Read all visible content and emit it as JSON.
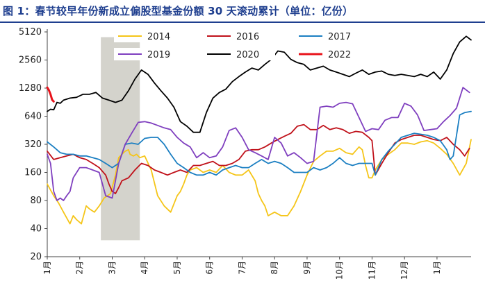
{
  "title": "图 1：春节较早年份新成立偏股型基金份额 30 天滚动累计（单位：亿份）",
  "chart_data": {
    "type": "line",
    "title": "图 1：春节较早年份新成立偏股型基金份额 30 天滚动累计（单位：亿份）",
    "y_scale": "log2",
    "ylim": [
      20,
      5120
    ],
    "yticks": [
      20,
      40,
      80,
      160,
      320,
      640,
      1280,
      2560,
      5120
    ],
    "x_months": [
      "1月",
      "2月",
      "3月",
      "4月",
      "5月",
      "6月",
      "7月",
      "8月",
      "9月",
      "10月",
      "11月",
      "12月",
      "1月"
    ],
    "x_month_pos": [
      0,
      1,
      2,
      3,
      4,
      5,
      6,
      7,
      8,
      9,
      10,
      11,
      12
    ],
    "x_end": 13.05,
    "shaded_region": [
      1.65,
      2.85
    ],
    "legend_placement": "top",
    "series": [
      {
        "name": "2014",
        "color": "#f5c518",
        "x": [
          0,
          0.2,
          0.35,
          0.5,
          0.7,
          0.8,
          0.9,
          1.05,
          1.2,
          1.3,
          1.45,
          1.6,
          1.75,
          1.95,
          2.1,
          2.2,
          2.3,
          2.4,
          2.5,
          2.55,
          2.65,
          2.75,
          2.85,
          3.0,
          3.2,
          3.4,
          3.6,
          3.8,
          4.0,
          4.1,
          4.2,
          4.3,
          4.4,
          4.6,
          4.8,
          5.0,
          5.2,
          5.4,
          5.6,
          5.8,
          6.0,
          6.2,
          6.4,
          6.5,
          6.6,
          6.7,
          6.8,
          7.0,
          7.2,
          7.4,
          7.6,
          7.8,
          8.0,
          8.2,
          8.4,
          8.6,
          8.8,
          9.0,
          9.2,
          9.4,
          9.6,
          9.7,
          9.8,
          9.9,
          10.0,
          10.1,
          10.3,
          10.5,
          10.7,
          10.9,
          11.1,
          11.3,
          11.5,
          11.7,
          11.9,
          12.1,
          12.3,
          12.5,
          12.7,
          12.9,
          13.05
        ],
        "values": [
          120,
          90,
          75,
          60,
          45,
          55,
          50,
          45,
          70,
          65,
          60,
          70,
          85,
          95,
          150,
          230,
          250,
          270,
          280,
          250,
          240,
          250,
          230,
          240,
          170,
          90,
          70,
          60,
          90,
          100,
          120,
          150,
          170,
          180,
          160,
          170,
          160,
          190,
          160,
          150,
          150,
          170,
          130,
          95,
          80,
          70,
          55,
          60,
          55,
          55,
          70,
          100,
          150,
          210,
          240,
          270,
          270,
          290,
          260,
          250,
          300,
          280,
          190,
          140,
          140,
          170,
          220,
          250,
          280,
          330,
          330,
          320,
          340,
          350,
          330,
          290,
          250,
          200,
          150,
          200,
          360
        ]
      },
      {
        "name": "2016",
        "color": "#c0111a",
        "x": [
          0,
          0.2,
          0.4,
          0.6,
          0.8,
          1.0,
          1.2,
          1.4,
          1.6,
          1.8,
          1.9,
          2.0,
          2.1,
          2.2,
          2.3,
          2.5,
          2.7,
          2.9,
          3.1,
          3.3,
          3.5,
          3.7,
          3.9,
          4.1,
          4.3,
          4.5,
          4.7,
          4.9,
          5.1,
          5.3,
          5.5,
          5.7,
          5.9,
          6.1,
          6.3,
          6.5,
          6.7,
          6.9,
          7.1,
          7.3,
          7.5,
          7.7,
          7.9,
          8.1,
          8.3,
          8.5,
          8.7,
          8.9,
          9.1,
          9.3,
          9.5,
          9.7,
          9.9,
          10.0,
          10.1,
          10.3,
          10.5,
          10.7,
          10.9,
          11.1,
          11.3,
          11.5,
          11.7,
          11.9,
          12.1,
          12.3,
          12.5,
          12.7,
          12.85,
          13.0
        ],
        "values": [
          270,
          220,
          230,
          240,
          250,
          230,
          220,
          200,
          180,
          150,
          120,
          100,
          95,
          110,
          130,
          140,
          170,
          200,
          190,
          170,
          160,
          150,
          160,
          170,
          160,
          190,
          190,
          200,
          210,
          190,
          190,
          200,
          220,
          270,
          280,
          280,
          300,
          330,
          360,
          390,
          420,
          500,
          520,
          460,
          460,
          510,
          460,
          480,
          460,
          420,
          440,
          430,
          380,
          350,
          150,
          200,
          260,
          330,
          360,
          380,
          400,
          400,
          380,
          360,
          350,
          380,
          320,
          280,
          240,
          290
        ]
      },
      {
        "name": "2017",
        "color": "#1b7fc2",
        "x": [
          0,
          0.2,
          0.4,
          0.6,
          0.8,
          1.0,
          1.2,
          1.4,
          1.6,
          1.8,
          2.0,
          2.2,
          2.4,
          2.6,
          2.8,
          3.0,
          3.2,
          3.4,
          3.6,
          3.8,
          4.0,
          4.2,
          4.4,
          4.6,
          4.8,
          5.0,
          5.2,
          5.4,
          5.6,
          5.8,
          6.0,
          6.2,
          6.4,
          6.6,
          6.8,
          7.0,
          7.2,
          7.4,
          7.6,
          7.8,
          8.0,
          8.2,
          8.4,
          8.6,
          8.8,
          9.0,
          9.2,
          9.4,
          9.6,
          9.8,
          10.0,
          10.1,
          10.3,
          10.5,
          10.7,
          10.9,
          11.1,
          11.3,
          11.5,
          11.7,
          11.9,
          12.1,
          12.3,
          12.4,
          12.5,
          12.6,
          12.7,
          12.85,
          13.05
        ],
        "values": [
          340,
          300,
          260,
          250,
          250,
          240,
          240,
          230,
          220,
          200,
          180,
          200,
          320,
          330,
          320,
          370,
          380,
          380,
          320,
          250,
          200,
          180,
          160,
          150,
          150,
          160,
          150,
          170,
          180,
          190,
          180,
          180,
          200,
          220,
          200,
          210,
          200,
          180,
          160,
          160,
          160,
          180,
          170,
          180,
          200,
          230,
          200,
          190,
          200,
          200,
          200,
          150,
          220,
          270,
          320,
          380,
          400,
          420,
          410,
          400,
          380,
          350,
          280,
          220,
          240,
          400,
          660,
          700,
          720
        ]
      },
      {
        "name": "2019",
        "color": "#7f3fbf",
        "x": [
          0,
          0.1,
          0.2,
          0.3,
          0.4,
          0.5,
          0.6,
          0.7,
          0.8,
          1.0,
          1.2,
          1.4,
          1.6,
          1.8,
          2.0,
          2.2,
          2.4,
          2.6,
          2.8,
          3.0,
          3.2,
          3.4,
          3.6,
          3.8,
          4.0,
          4.2,
          4.4,
          4.6,
          4.8,
          5.0,
          5.2,
          5.4,
          5.6,
          5.8,
          6.0,
          6.2,
          6.4,
          6.6,
          6.8,
          7.0,
          7.2,
          7.4,
          7.6,
          7.8,
          8.0,
          8.2,
          8.4,
          8.6,
          8.8,
          9.0,
          9.2,
          9.4,
          9.6,
          9.8,
          10.0,
          10.2,
          10.4,
          10.6,
          10.8,
          11.0,
          11.2,
          11.4,
          11.6,
          11.8,
          12.0,
          12.2,
          12.4,
          12.6,
          12.8,
          13.0
        ],
        "values": [
          250,
          200,
          100,
          80,
          85,
          80,
          90,
          100,
          140,
          180,
          180,
          170,
          160,
          90,
          85,
          200,
          320,
          420,
          550,
          560,
          540,
          510,
          480,
          460,
          380,
          330,
          300,
          230,
          260,
          230,
          240,
          300,
          450,
          480,
          380,
          280,
          260,
          240,
          220,
          380,
          330,
          240,
          260,
          230,
          200,
          210,
          800,
          820,
          800,
          880,
          900,
          870,
          620,
          440,
          470,
          460,
          580,
          620,
          620,
          880,
          820,
          660,
          450,
          460,
          470,
          560,
          650,
          780,
          1300,
          1150
        ]
      },
      {
        "name": "2020",
        "color": "#000000",
        "x": [
          0,
          0.1,
          0.2,
          0.3,
          0.4,
          0.5,
          0.7,
          0.9,
          1.1,
          1.3,
          1.5,
          1.7,
          1.9,
          2.1,
          2.3,
          2.5,
          2.7,
          2.9,
          3.1,
          3.3,
          3.5,
          3.7,
          3.9,
          4.1,
          4.3,
          4.5,
          4.7,
          4.9,
          5.1,
          5.3,
          5.5,
          5.7,
          5.9,
          6.1,
          6.3,
          6.5,
          6.7,
          6.9,
          7.1,
          7.3,
          7.5,
          7.7,
          7.9,
          8.1,
          8.3,
          8.5,
          8.7,
          8.9,
          9.1,
          9.3,
          9.5,
          9.7,
          9.9,
          10.1,
          10.3,
          10.5,
          10.7,
          10.9,
          11.1,
          11.3,
          11.5,
          11.7,
          11.9,
          12.1,
          12.3,
          12.5,
          12.7,
          12.9,
          13.05
        ],
        "values": [
          720,
          760,
          750,
          900,
          880,
          950,
          1000,
          1020,
          1100,
          1100,
          1150,
          1000,
          950,
          900,
          950,
          1200,
          1600,
          2000,
          1800,
          1450,
          1200,
          1000,
          800,
          560,
          500,
          430,
          430,
          700,
          1000,
          1150,
          1250,
          1500,
          1700,
          1900,
          2100,
          2000,
          2300,
          2600,
          3200,
          3100,
          2600,
          2400,
          2300,
          2000,
          2100,
          2200,
          2000,
          1900,
          1800,
          1700,
          1850,
          2000,
          1800,
          1900,
          1950,
          1800,
          1750,
          1800,
          1750,
          1700,
          1800,
          1700,
          1900,
          1600,
          2000,
          3000,
          4000,
          4600,
          4200
        ]
      },
      {
        "name": "2022",
        "color": "#e8121a",
        "stroke_width": 3,
        "x": [
          0,
          0.05,
          0.1,
          0.15,
          0.2
        ],
        "values": [
          1300,
          1220,
          1100,
          960,
          920
        ]
      }
    ]
  }
}
